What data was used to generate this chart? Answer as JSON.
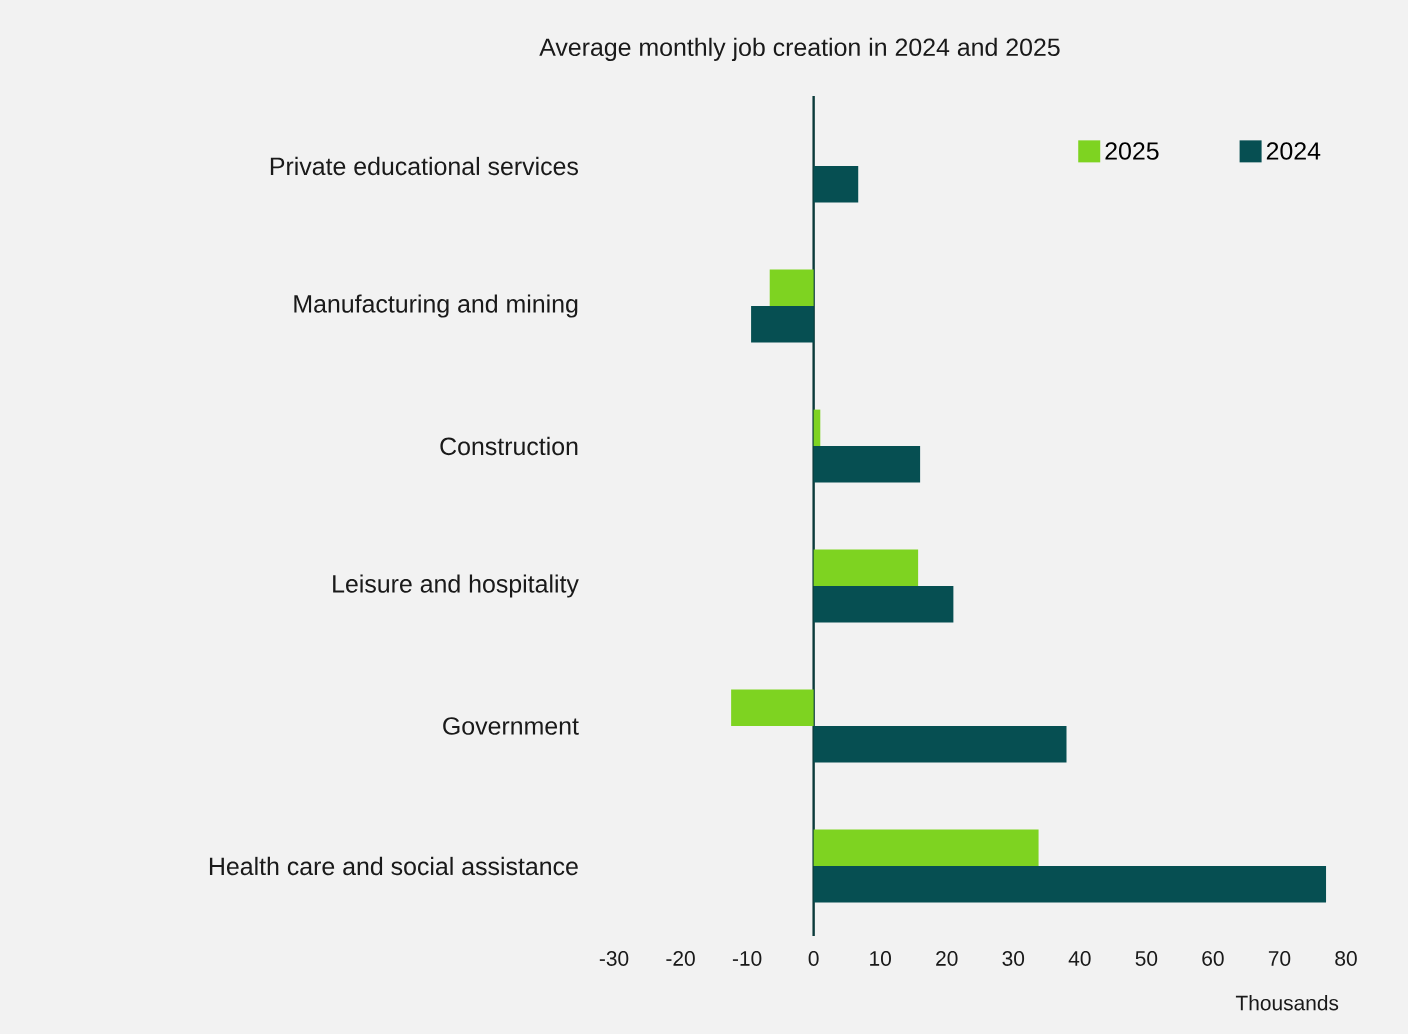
{
  "chart_data": {
    "type": "bar",
    "orientation": "horizontal",
    "title": "Average monthly job creation in 2024 and 2025",
    "xlabel": "Thousands",
    "categories": [
      "Private educational services",
      "Manufacturing and mining",
      "Construction",
      "Leisure and hospitality",
      "Government",
      "Health care and social assistance"
    ],
    "series": [
      {
        "name": "2025",
        "color": "#7ed321",
        "values": [
          0,
          -6.6,
          1,
          15.7,
          -12.4,
          33.8
        ]
      },
      {
        "name": "2024",
        "color": "#064f52",
        "values": [
          6.7,
          -9.4,
          16,
          21,
          38,
          77
        ]
      }
    ],
    "xlim": [
      -30,
      80
    ],
    "xticks": [
      -30,
      -20,
      -10,
      0,
      10,
      20,
      30,
      40,
      50,
      60,
      70,
      80
    ],
    "legend": "top right"
  }
}
